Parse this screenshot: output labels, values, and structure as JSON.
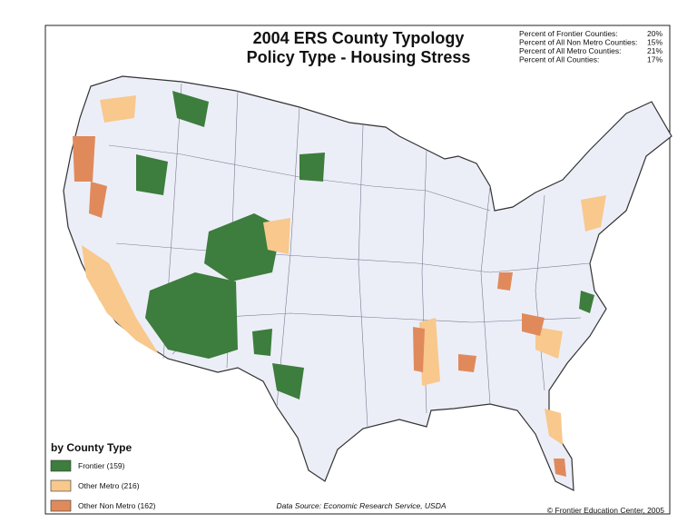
{
  "header": {
    "title_lines": [
      "2004 ERS County Typology",
      "Policy Type - Housing Stress"
    ]
  },
  "stats": [
    {
      "label": "Percent of Frontier Counties:",
      "value": "20%"
    },
    {
      "label": "Percent of All Non Metro Counties:",
      "value": "15%"
    },
    {
      "label": "Percent of All Metro Counties:",
      "value": "21%"
    },
    {
      "label": "Percent of All Counties:",
      "value": "17%"
    }
  ],
  "legend": {
    "title": "by County Type",
    "items": [
      {
        "label": "Frontier (159)",
        "color": "#3d7d3d"
      },
      {
        "label": "Other Metro (216)",
        "color": "#f8c88c"
      },
      {
        "label": "Other Non Metro (162)",
        "color": "#e08a5c"
      }
    ]
  },
  "footer": {
    "source": "Data Source: Economic Research Service, USDA",
    "credit": "© Frontier Education Center, 2005"
  }
}
